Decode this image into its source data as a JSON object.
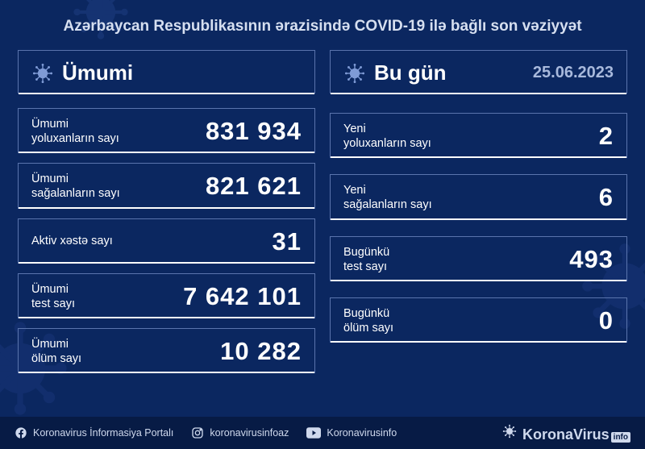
{
  "title": "Azərbaycan Respublikasının ərazisində COVID-19 ilə bağlı son vəziyyət",
  "colors": {
    "background": "#0b2760",
    "footer_bg": "#071b45",
    "border": "#5a74ad",
    "underline": "#ffffff",
    "text": "#ffffff",
    "muted": "#a8b9dc",
    "virus_accent": "#3a5aa8"
  },
  "left": {
    "heading": "Ümumi",
    "rows": [
      {
        "label": "Ümumi\nyoluxanların sayı",
        "value": "831 934"
      },
      {
        "label": "Ümumi\nsağalanların sayı",
        "value": "821 621"
      },
      {
        "label": "Aktiv xəstə sayı",
        "value": "31"
      },
      {
        "label": "Ümumi\ntest sayı",
        "value": "7 642 101"
      },
      {
        "label": "Ümumi\nölüm sayı",
        "value": "10 282"
      }
    ]
  },
  "right": {
    "heading": "Bu gün",
    "date": "25.06.2023",
    "rows": [
      {
        "label": "Yeni\nyoluxanların sayı",
        "value": "2"
      },
      {
        "label": "Yeni\nsağalanların sayı",
        "value": "6"
      },
      {
        "label": "Bugünkü\ntest sayı",
        "value": "493"
      },
      {
        "label": "Bugünkü\nölüm sayı",
        "value": "0"
      }
    ]
  },
  "footer": {
    "facebook": "Koronavirus İnformasiya Portalı",
    "instagram": "koronavirusinfoaz",
    "youtube": "Koronavirusinfo",
    "brand_main": "KoronaVirus",
    "brand_suffix": "info"
  },
  "typography": {
    "title_fontsize": 19,
    "heading_fontsize": 26,
    "date_fontsize": 20,
    "label_fontsize": 14.5,
    "value_fontsize": 31,
    "footer_fontsize": 12.5,
    "brand_fontsize": 18
  }
}
